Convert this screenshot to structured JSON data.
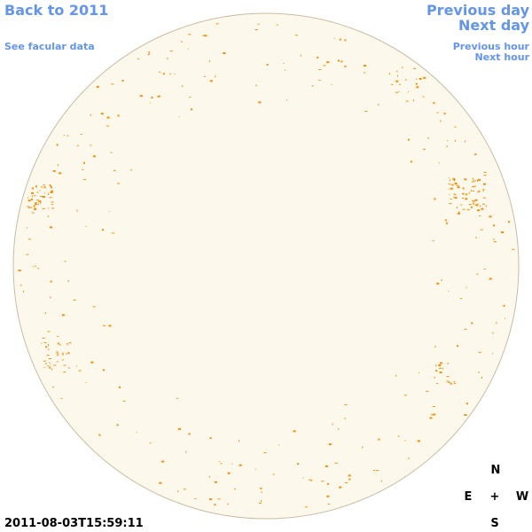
{
  "nav": {
    "back": "Back to 2011",
    "facular": "See facular data",
    "previous_day": "Previous day",
    "next_day": "Next day",
    "previous_hour": "Previous hour",
    "next_hour": "Next hour"
  },
  "timestamp": "2011-08-03T15:59:11",
  "compass": {
    "north": "N",
    "east": "E",
    "center": "+",
    "west": "W",
    "south": "S"
  }
}
